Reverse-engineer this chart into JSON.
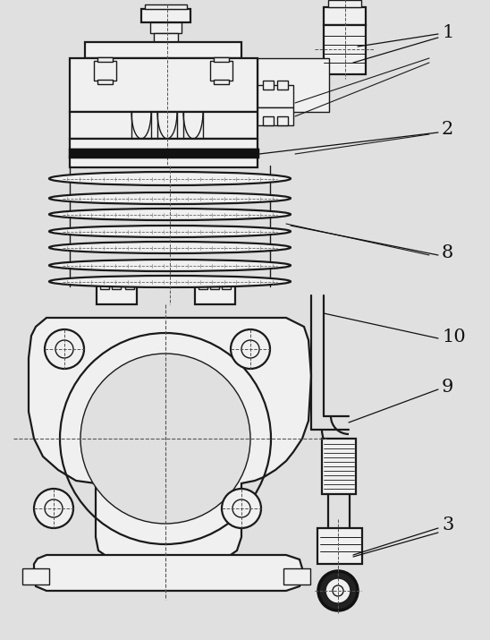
{
  "bg_color": "#e0e0e0",
  "line_color": "#1a1a1a",
  "white": "#f0f0f0",
  "label_font_size": 15,
  "fig_width": 5.48,
  "fig_height": 7.15,
  "dpi": 100
}
